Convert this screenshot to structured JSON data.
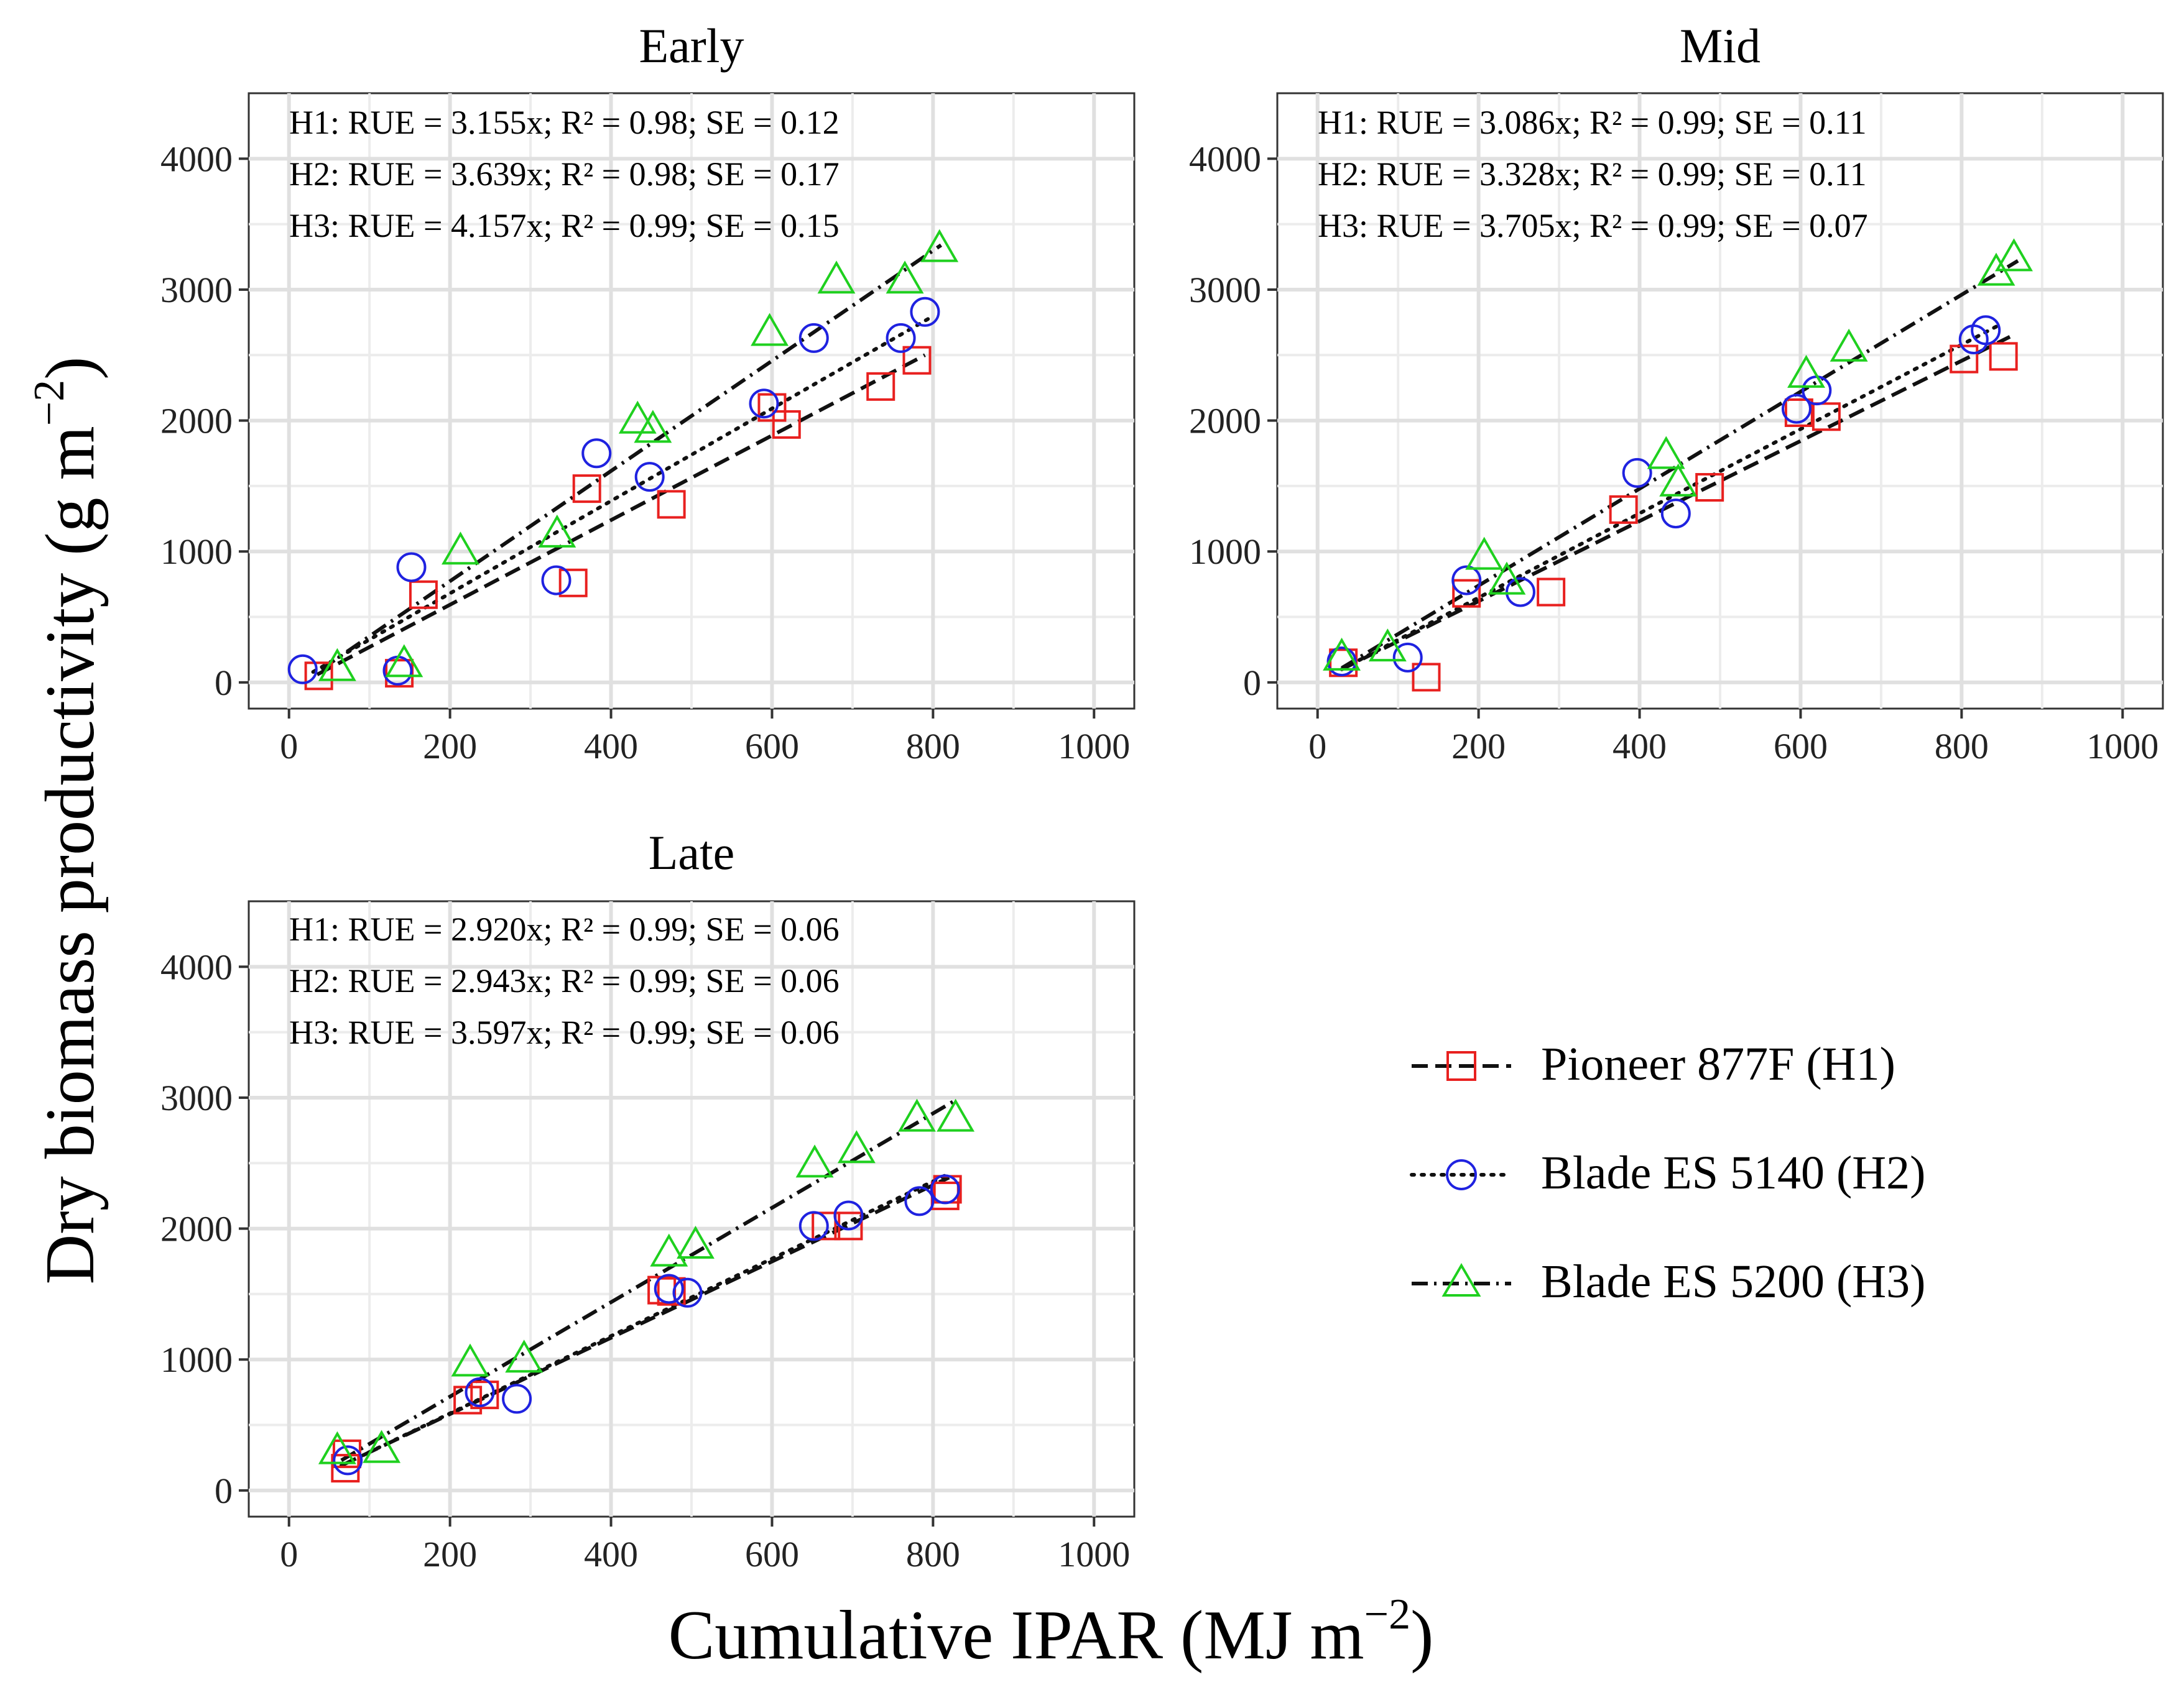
{
  "figure": {
    "xlabel_main": "Cumulative IPAR (MJ m",
    "xlabel_sup": "−2",
    "xlabel_close": ")",
    "ylabel_main": "Dry biomass productivity (g m",
    "ylabel_sup": "−2",
    "ylabel_close": ")"
  },
  "legend": {
    "position": "bottom-right",
    "items": [
      {
        "label": "Pioneer 877F (H1)",
        "marker": "square",
        "line": "dashed",
        "color": "#e8201f"
      },
      {
        "label": "Blade ES 5140 (H2)",
        "marker": "circle",
        "line": "dotted",
        "color": "#1f22e0"
      },
      {
        "label": "Blade ES 5200 (H3)",
        "marker": "triangle",
        "line": "dashdot",
        "color": "#1fd01f"
      }
    ]
  },
  "chart_data": [
    {
      "type": "scatter",
      "title": "Early",
      "xlim": [
        -50,
        1050
      ],
      "ylim": [
        -200,
        4500
      ],
      "xticks": [
        0,
        200,
        400,
        600,
        800,
        1000
      ],
      "yticks": [
        0,
        1000,
        2000,
        3000,
        4000
      ],
      "grid": true,
      "annotations": [
        "H1: RUE = 3.155x; R² = 0.98; SE = 0.12",
        "H2: RUE = 3.639x; R² = 0.98; SE = 0.17",
        "H3: RUE = 4.157x; R² = 0.99; SE = 0.15"
      ],
      "series": [
        {
          "name": "Pioneer 877F (H1)",
          "slope": 3.155,
          "fit": [
            [
              35,
              60
            ],
            [
              790,
              2500
            ]
          ],
          "points": [
            [
              37,
              50
            ],
            [
              137,
              70
            ],
            [
              167,
              670
            ],
            [
              370,
              1480
            ],
            [
              353,
              760
            ],
            [
              475,
              1360
            ],
            [
              600,
              2100
            ],
            [
              618,
              1970
            ],
            [
              735,
              2260
            ],
            [
              780,
              2460
            ]
          ]
        },
        {
          "name": "Blade ES 5140 (H2)",
          "slope": 3.639,
          "fit": [
            [
              30,
              80
            ],
            [
              795,
              2780
            ]
          ],
          "points": [
            [
              17,
              100
            ],
            [
              135,
              90
            ],
            [
              152,
              880
            ],
            [
              332,
              780
            ],
            [
              382,
              1750
            ],
            [
              448,
              1570
            ],
            [
              590,
              2130
            ],
            [
              652,
              2630
            ],
            [
              760,
              2630
            ],
            [
              790,
              2830
            ]
          ]
        },
        {
          "name": "Blade ES 5200 (H3)",
          "slope": 4.157,
          "fit": [
            [
              40,
              100
            ],
            [
              810,
              3340
            ]
          ],
          "points": [
            [
              60,
              110
            ],
            [
              143,
              140
            ],
            [
              213,
              1000
            ],
            [
              333,
              1130
            ],
            [
              433,
              2000
            ],
            [
              452,
              1930
            ],
            [
              597,
              2670
            ],
            [
              680,
              3070
            ],
            [
              765,
              3070
            ],
            [
              808,
              3310
            ]
          ]
        }
      ]
    },
    {
      "type": "scatter",
      "title": "Mid",
      "xlim": [
        -50,
        1050
      ],
      "ylim": [
        -200,
        4500
      ],
      "xticks": [
        0,
        200,
        400,
        600,
        800,
        1000
      ],
      "yticks": [
        0,
        1000,
        2000,
        3000,
        4000
      ],
      "grid": true,
      "annotations": [
        "H1: RUE = 3.086x; R² = 0.99; SE = 0.11",
        "H2: RUE = 3.328x; R² = 0.99; SE = 0.11",
        "H3: RUE = 3.705x; R² = 0.99; SE = 0.07"
      ],
      "series": [
        {
          "name": "Pioneer 877F (H1)",
          "slope": 3.086,
          "fit": [
            [
              30,
              100
            ],
            [
              860,
              2640
            ]
          ],
          "points": [
            [
              32,
              150
            ],
            [
              135,
              40
            ],
            [
              185,
              680
            ],
            [
              290,
              690
            ],
            [
              380,
              1320
            ],
            [
              487,
              1490
            ],
            [
              598,
              2060
            ],
            [
              632,
              2030
            ],
            [
              803,
              2470
            ],
            [
              852,
              2490
            ]
          ]
        },
        {
          "name": "Blade ES 5140 (H2)",
          "slope": 3.328,
          "fit": [
            [
              30,
              100
            ],
            [
              850,
              2740
            ]
          ],
          "points": [
            [
              30,
              160
            ],
            [
              112,
              190
            ],
            [
              185,
              780
            ],
            [
              252,
              690
            ],
            [
              397,
              1600
            ],
            [
              445,
              1290
            ],
            [
              595,
              2090
            ],
            [
              620,
              2230
            ],
            [
              815,
              2620
            ],
            [
              830,
              2690
            ]
          ]
        },
        {
          "name": "Blade ES 5200 (H3)",
          "slope": 3.705,
          "fit": [
            [
              30,
              110
            ],
            [
              870,
              3220
            ]
          ],
          "points": [
            [
              30,
              190
            ],
            [
              87,
              260
            ],
            [
              207,
              960
            ],
            [
              235,
              770
            ],
            [
              433,
              1730
            ],
            [
              448,
              1520
            ],
            [
              607,
              2350
            ],
            [
              660,
              2550
            ],
            [
              843,
              3130
            ],
            [
              865,
              3240
            ]
          ]
        }
      ]
    },
    {
      "type": "scatter",
      "title": "Late",
      "xlim": [
        -50,
        1050
      ],
      "ylim": [
        -200,
        4500
      ],
      "xticks": [
        0,
        200,
        400,
        600,
        800,
        1000
      ],
      "yticks": [
        0,
        1000,
        2000,
        3000,
        4000
      ],
      "grid": true,
      "annotations": [
        "H1: RUE = 2.920x; R² = 0.99; SE = 0.06",
        "H2: RUE = 2.943x; R² = 0.99; SE = 0.06",
        "H3: RUE = 3.597x; R² = 0.99; SE = 0.06"
      ],
      "series": [
        {
          "name": "Pioneer 877F (H1)",
          "slope": 2.92,
          "fit": [
            [
              65,
              190
            ],
            [
              820,
              2390
            ]
          ],
          "points": [
            [
              70,
              170
            ],
            [
              72,
              280
            ],
            [
              222,
              690
            ],
            [
              243,
              730
            ],
            [
              463,
              1530
            ],
            [
              475,
              1520
            ],
            [
              667,
              2020
            ],
            [
              695,
              2020
            ],
            [
              815,
              2250
            ],
            [
              818,
              2300
            ]
          ]
        },
        {
          "name": "Blade ES 5140 (H2)",
          "slope": 2.943,
          "fit": [
            [
              65,
              190
            ],
            [
              820,
              2420
            ]
          ],
          "points": [
            [
              73,
              230
            ],
            [
              237,
              750
            ],
            [
              283,
              700
            ],
            [
              472,
              1540
            ],
            [
              495,
              1510
            ],
            [
              652,
              2020
            ],
            [
              695,
              2100
            ],
            [
              783,
              2210
            ],
            [
              815,
              2300
            ]
          ]
        },
        {
          "name": "Blade ES 5200 (H3)",
          "slope": 3.597,
          "fit": [
            [
              65,
              230
            ],
            [
              825,
              2970
            ]
          ],
          "points": [
            [
              60,
              300
            ],
            [
              115,
              310
            ],
            [
              225,
              970
            ],
            [
              292,
              1000
            ],
            [
              472,
              1810
            ],
            [
              505,
              1870
            ],
            [
              653,
              2490
            ],
            [
              705,
              2600
            ],
            [
              780,
              2840
            ],
            [
              828,
              2840
            ]
          ]
        }
      ]
    }
  ]
}
